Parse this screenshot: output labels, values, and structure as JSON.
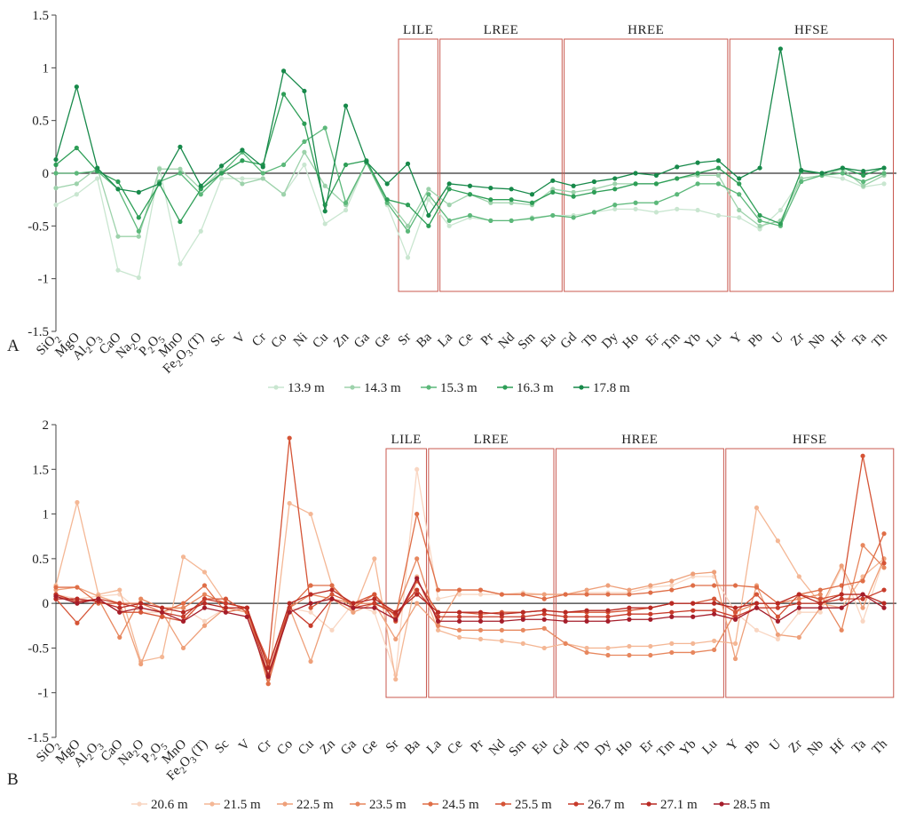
{
  "chart_data": [
    {
      "type": "line",
      "panel_label": "A",
      "categories": [
        "SiO2",
        "MgO",
        "Al2O3",
        "CaO",
        "Na2O",
        "P2O5",
        "MnO",
        "Fe2O3 (T)",
        "Sc",
        "V",
        "Cr",
        "Co",
        "Ni",
        "Cu",
        "Zn",
        "Ga",
        "Ge",
        "Sr",
        "Ba",
        "La",
        "Ce",
        "Pr",
        "Nd",
        "Sm",
        "Eu",
        "Gd",
        "Tb",
        "Dy",
        "Ho",
        "Er",
        "Tm",
        "Yb",
        "Lu",
        "Y",
        "Pb",
        "U",
        "Zr",
        "Nb",
        "Hf",
        "Ta",
        "Th"
      ],
      "ylim": [
        -1.5,
        1.5
      ],
      "yticks": [
        "1.5",
        "1",
        "0.5",
        "0",
        "-0.5",
        "-1",
        "-1.5"
      ],
      "groups": [
        {
          "label": "LILE",
          "from": "Sr",
          "to": "Ba"
        },
        {
          "label": "LREE",
          "from": "La",
          "to": "Eu"
        },
        {
          "label": "HREE",
          "from": "Gd",
          "to": "Lu"
        },
        {
          "label": "HFSE",
          "from": "Y",
          "to": "Th"
        }
      ],
      "group_color": "#c8584f",
      "legend": "bottom",
      "series": [
        {
          "name": "13.9 m",
          "color": "#c9e6d0",
          "values": [
            -0.3,
            -0.2,
            -0.05,
            -0.92,
            -0.99,
            0.05,
            -0.86,
            -0.55,
            -0.05,
            -0.05,
            -0.05,
            -0.2,
            0.08,
            -0.48,
            -0.35,
            0.1,
            -0.3,
            -0.8,
            -0.25,
            -0.5,
            -0.42,
            -0.45,
            -0.45,
            -0.42,
            -0.4,
            -0.4,
            -0.37,
            -0.34,
            -0.34,
            -0.37,
            -0.34,
            -0.35,
            -0.4,
            -0.42,
            -0.53,
            -0.35,
            -0.05,
            -0.02,
            -0.05,
            -0.13,
            -0.1
          ]
        },
        {
          "name": "14.3 m",
          "color": "#9dd2ab",
          "values": [
            -0.14,
            -0.1,
            0.05,
            -0.6,
            -0.6,
            0.04,
            0.04,
            -0.15,
            0.03,
            -0.1,
            -0.05,
            -0.2,
            0.2,
            -0.12,
            -0.3,
            0.1,
            -0.25,
            -0.5,
            -0.15,
            -0.3,
            -0.2,
            -0.28,
            -0.28,
            -0.3,
            -0.15,
            -0.18,
            -0.15,
            -0.1,
            -0.1,
            -0.1,
            -0.05,
            -0.02,
            -0.02,
            -0.35,
            -0.5,
            -0.45,
            -0.05,
            -0.02,
            0.04,
            -0.12,
            -0.02
          ]
        },
        {
          "name": "15.3 m",
          "color": "#5cb87a",
          "values": [
            0.0,
            0.0,
            0.02,
            -0.15,
            -0.55,
            -0.08,
            0.0,
            -0.2,
            0.0,
            0.2,
            0.0,
            0.08,
            0.3,
            0.43,
            -0.28,
            0.1,
            -0.28,
            -0.55,
            -0.2,
            -0.45,
            -0.4,
            -0.45,
            -0.45,
            -0.43,
            -0.4,
            -0.42,
            -0.37,
            -0.3,
            -0.28,
            -0.28,
            -0.2,
            -0.1,
            -0.1,
            -0.2,
            -0.45,
            -0.5,
            -0.08,
            -0.02,
            0.0,
            -0.08,
            0.0
          ]
        },
        {
          "name": "16.3 m",
          "color": "#2e9e57",
          "values": [
            0.08,
            0.24,
            0.02,
            -0.08,
            -0.42,
            -0.1,
            -0.46,
            -0.15,
            0.0,
            0.12,
            0.08,
            0.75,
            0.47,
            -0.3,
            0.08,
            0.12,
            -0.25,
            -0.3,
            -0.5,
            -0.15,
            -0.2,
            -0.25,
            -0.25,
            -0.28,
            -0.18,
            -0.22,
            -0.18,
            -0.15,
            -0.1,
            -0.1,
            -0.05,
            0.0,
            0.05,
            -0.1,
            -0.4,
            -0.48,
            0.02,
            0.0,
            0.05,
            -0.02,
            0.05
          ]
        },
        {
          "name": "17.8 m",
          "color": "#17894a",
          "values": [
            0.13,
            0.82,
            0.05,
            -0.15,
            -0.18,
            -0.1,
            0.25,
            -0.12,
            0.07,
            0.22,
            0.06,
            0.97,
            0.78,
            -0.36,
            0.64,
            0.11,
            -0.1,
            0.09,
            -0.4,
            -0.1,
            -0.12,
            -0.14,
            -0.15,
            -0.2,
            -0.07,
            -0.12,
            -0.08,
            -0.05,
            0.0,
            -0.02,
            0.06,
            0.1,
            0.12,
            -0.05,
            0.05,
            1.18,
            0.03,
            0.0,
            0.05,
            0.02,
            0.05
          ]
        }
      ]
    },
    {
      "type": "line",
      "panel_label": "B",
      "categories": [
        "SiO2",
        "MgO",
        "Al2O3",
        "CaO",
        "Na2O",
        "P2O5",
        "MnO",
        "Fe2O3 (T)",
        "Sc",
        "V",
        "Cr",
        "Co",
        "Cu",
        "Zn",
        "Ga",
        "Ge",
        "Sr",
        "Ba",
        "La",
        "Ce",
        "Pr",
        "Nd",
        "Sm",
        "Eu",
        "Gd",
        "Tb",
        "Dy",
        "Ho",
        "Er",
        "Tm",
        "Yb",
        "Lu",
        "Y",
        "Pb",
        "U",
        "Zr",
        "Nb",
        "Hf",
        "Ta",
        "Th"
      ],
      "ylim": [
        -1.5,
        2.0
      ],
      "yticks": [
        "2",
        "1.5",
        "1",
        "0.5",
        "0",
        "-0.5",
        "-1",
        "-1.5"
      ],
      "groups": [
        {
          "label": "LILE",
          "from": "Sr",
          "to": "Ba"
        },
        {
          "label": "LREE",
          "from": "La",
          "to": "Eu"
        },
        {
          "label": "HREE",
          "from": "Gd",
          "to": "Lu"
        },
        {
          "label": "HFSE",
          "from": "Y",
          "to": "Th"
        }
      ],
      "group_color": "#c8584f",
      "legend": "bottom",
      "series": [
        {
          "name": "20.6 m",
          "color": "#f9d6c2",
          "values": [
            0.1,
            0.05,
            0.08,
            0.1,
            -0.1,
            -0.1,
            -0.05,
            -0.2,
            -0.05,
            -0.1,
            -0.75,
            -0.05,
            -0.1,
            -0.3,
            0.0,
            -0.1,
            -0.8,
            1.5,
            0.05,
            0.1,
            0.1,
            0.1,
            0.12,
            0.1,
            0.1,
            0.12,
            0.12,
            0.12,
            0.18,
            0.2,
            0.3,
            0.3,
            -0.1,
            -0.3,
            -0.4,
            -0.1,
            -0.1,
            0.4,
            -0.2,
            0.5
          ]
        },
        {
          "name": "21.5 m",
          "color": "#f4b795",
          "values": [
            0.2,
            1.13,
            0.1,
            0.15,
            -0.65,
            -0.6,
            0.52,
            0.35,
            0.0,
            -0.05,
            -0.9,
            1.12,
            1.0,
            0.2,
            -0.1,
            0.5,
            -0.85,
            0.3,
            -0.3,
            -0.38,
            -0.4,
            -0.42,
            -0.45,
            -0.5,
            -0.45,
            -0.5,
            -0.5,
            -0.48,
            -0.48,
            -0.45,
            -0.45,
            -0.42,
            -0.45,
            1.07,
            0.7,
            0.3,
            0.0,
            -0.05,
            0.3,
            0.5
          ]
        },
        {
          "name": "22.5 m",
          "color": "#eea07a",
          "values": [
            0.15,
            0.18,
            0.08,
            0.0,
            -0.68,
            -0.1,
            -0.5,
            -0.25,
            -0.05,
            -0.1,
            -0.85,
            -0.05,
            -0.65,
            0.05,
            -0.1,
            0.0,
            -0.4,
            0.0,
            -0.25,
            0.15,
            0.15,
            0.1,
            0.1,
            0.1,
            0.1,
            0.15,
            0.2,
            0.15,
            0.2,
            0.25,
            0.33,
            0.35,
            -0.62,
            0.2,
            -0.35,
            -0.38,
            -0.05,
            0.42,
            -0.05,
            0.5
          ]
        },
        {
          "name": "23.5 m",
          "color": "#e7875e",
          "values": [
            0.1,
            0.0,
            0.05,
            -0.38,
            0.05,
            -0.05,
            -0.05,
            0.1,
            0.0,
            -0.05,
            -0.7,
            -0.05,
            0.1,
            0.05,
            0.0,
            0.0,
            -0.1,
            0.5,
            -0.25,
            -0.3,
            -0.3,
            -0.3,
            -0.3,
            -0.28,
            -0.45,
            -0.55,
            -0.58,
            -0.58,
            -0.58,
            -0.55,
            -0.55,
            -0.52,
            -0.1,
            0.0,
            0.0,
            0.05,
            0.1,
            -0.3,
            0.65,
            0.4
          ]
        },
        {
          "name": "24.5 m",
          "color": "#df6e47",
          "values": [
            0.18,
            0.18,
            0.0,
            0.0,
            0.0,
            -0.1,
            0.0,
            0.2,
            -0.1,
            -0.05,
            -0.9,
            -0.05,
            0.2,
            0.2,
            -0.05,
            0.1,
            -0.15,
            1.0,
            0.15,
            0.15,
            0.15,
            0.1,
            0.1,
            0.05,
            0.1,
            0.1,
            0.1,
            0.1,
            0.12,
            0.15,
            0.2,
            0.2,
            0.2,
            0.18,
            0.0,
            0.1,
            0.15,
            0.2,
            0.25,
            0.78
          ]
        },
        {
          "name": "25.5 m",
          "color": "#d55436",
          "values": [
            0.05,
            -0.22,
            0.05,
            -0.1,
            -0.1,
            -0.15,
            -0.2,
            0.05,
            0.05,
            -0.1,
            -0.65,
            1.85,
            -0.05,
            0.1,
            0.0,
            0.1,
            -0.2,
            0.25,
            -0.1,
            -0.1,
            -0.12,
            -0.1,
            -0.1,
            -0.08,
            -0.1,
            -0.1,
            -0.1,
            -0.08,
            -0.05,
            0.0,
            0.0,
            0.05,
            -0.1,
            0.1,
            -0.15,
            0.1,
            0.05,
            0.1,
            1.65,
            0.45
          ]
        },
        {
          "name": "26.7 m",
          "color": "#c73b2b",
          "values": [
            0.1,
            0.02,
            0.05,
            0.0,
            -0.05,
            -0.1,
            -0.15,
            0.05,
            0.0,
            -0.05,
            -0.8,
            -0.05,
            -0.25,
            0.05,
            -0.05,
            0.0,
            -0.12,
            0.15,
            -0.15,
            -0.15,
            -0.15,
            -0.15,
            -0.15,
            -0.12,
            -0.15,
            -0.15,
            -0.15,
            -0.12,
            -0.12,
            -0.1,
            -0.08,
            -0.08,
            -0.15,
            -0.05,
            -0.05,
            0.0,
            0.0,
            0.05,
            0.05,
            0.15
          ]
        },
        {
          "name": "27.1 m",
          "color": "#b82a24",
          "values": [
            0.05,
            0.05,
            0.02,
            -0.05,
            0.0,
            -0.05,
            -0.1,
            0.0,
            -0.05,
            -0.05,
            -0.72,
            0.0,
            0.1,
            0.15,
            0.0,
            0.05,
            -0.1,
            0.1,
            -0.1,
            -0.1,
            -0.1,
            -0.12,
            -0.1,
            -0.08,
            -0.1,
            -0.08,
            -0.08,
            -0.05,
            -0.05,
            0.0,
            0.0,
            0.0,
            -0.05,
            0.0,
            0.0,
            0.1,
            0.0,
            0.1,
            0.1,
            0.0
          ]
        },
        {
          "name": "28.5 m",
          "color": "#a51d2a",
          "values": [
            0.08,
            0.0,
            0.05,
            -0.1,
            -0.05,
            -0.1,
            -0.2,
            -0.05,
            -0.1,
            -0.15,
            -0.82,
            -0.1,
            0.0,
            0.05,
            -0.05,
            -0.05,
            -0.18,
            0.28,
            -0.2,
            -0.2,
            -0.2,
            -0.2,
            -0.18,
            -0.18,
            -0.2,
            -0.2,
            -0.2,
            -0.18,
            -0.18,
            -0.15,
            -0.15,
            -0.12,
            -0.18,
            -0.05,
            -0.2,
            -0.05,
            -0.05,
            -0.05,
            0.1,
            -0.05
          ]
        }
      ]
    }
  ]
}
